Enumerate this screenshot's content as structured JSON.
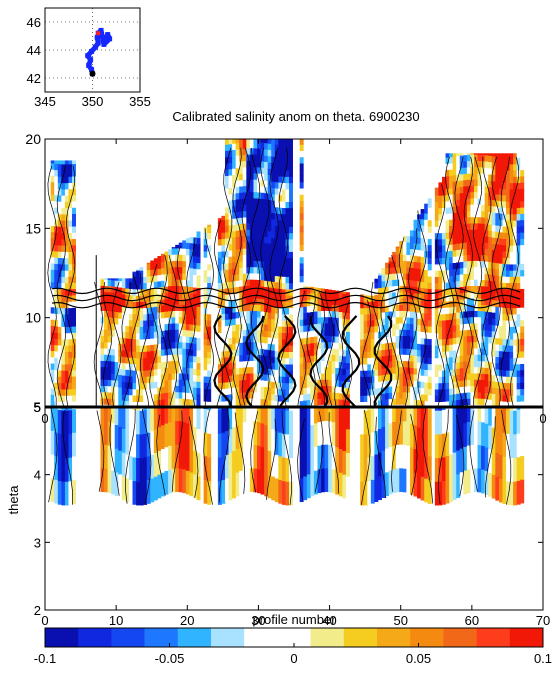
{
  "chart_data": [
    {
      "type": "scatter",
      "title": "",
      "xticks": [
        "345",
        "350",
        "355"
      ],
      "yticks": [
        "42",
        "44",
        "46"
      ],
      "xlim": [
        345,
        355
      ],
      "ylim": [
        41,
        47
      ],
      "grid": true,
      "track": [
        [
          350.0,
          42.3
        ],
        [
          349.9,
          42.6
        ],
        [
          349.6,
          42.9
        ],
        [
          349.8,
          43.3
        ],
        [
          349.5,
          43.6
        ],
        [
          349.9,
          43.9
        ],
        [
          350.3,
          44.2
        ],
        [
          350.6,
          44.5
        ],
        [
          350.5,
          44.9
        ],
        [
          350.9,
          45.0
        ],
        [
          351.3,
          44.7
        ],
        [
          351.6,
          45.1
        ],
        [
          351.8,
          44.8
        ],
        [
          351.2,
          44.4
        ],
        [
          350.9,
          45.4
        ],
        [
          350.6,
          45.2
        ]
      ],
      "start_marker": [
        350.0,
        42.3
      ],
      "colors": {
        "track": "#1428ff",
        "start": "#000000",
        "end": "#ff2020"
      }
    },
    {
      "type": "heatmap",
      "title": "Calibrated salinity anom on theta. 6900230",
      "xlabel": "profile number",
      "ylabel": "theta",
      "xlim": [
        0,
        70
      ],
      "ylim_upper": [
        5,
        20
      ],
      "ylim_lower": [
        2,
        5
      ],
      "xticks": [
        "0",
        "10",
        "20",
        "30",
        "40",
        "50",
        "60",
        "70"
      ],
      "xticks_upper": [
        "0",
        "0"
      ],
      "yticks_upper": [
        "5",
        "10",
        "15",
        "20"
      ],
      "yticks_lower": [
        "2",
        "3",
        "4",
        "5"
      ],
      "colorbar": {
        "ticks": [
          "-0.1",
          "-0.05",
          "0",
          "0.05",
          "0.1"
        ],
        "range": [
          -0.1,
          0.1
        ],
        "colors": [
          "#0a10b0",
          "#1028e0",
          "#1446f2",
          "#1e78ff",
          "#30b4ff",
          "#a8e2ff",
          "#ffffff",
          "#ffffff",
          "#f2ec8a",
          "#f5cc20",
          "#f5a818",
          "#f58a10",
          "#f06818",
          "#ff3c1c",
          "#f21808"
        ]
      }
    }
  ]
}
